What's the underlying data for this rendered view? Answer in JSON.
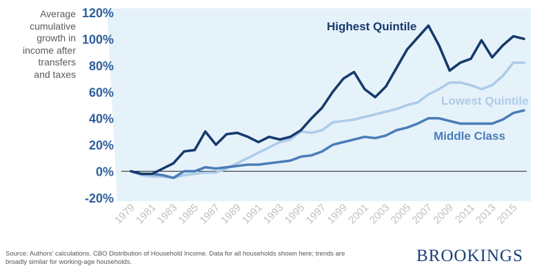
{
  "chart_data": {
    "type": "line",
    "ylabel": "Average cumulative growth in income after transfers and taxes",
    "ylim": [
      -20,
      120
    ],
    "yticks": [
      -20,
      0,
      20,
      40,
      60,
      80,
      100,
      120
    ],
    "ytick_labels": [
      "-20%",
      "0%",
      "20%",
      "40%",
      "60%",
      "80%",
      "100%",
      "120%"
    ],
    "x": [
      1979,
      1980,
      1981,
      1982,
      1983,
      1984,
      1985,
      1986,
      1987,
      1988,
      1989,
      1990,
      1991,
      1992,
      1993,
      1994,
      1995,
      1996,
      1997,
      1998,
      1999,
      2000,
      2001,
      2002,
      2003,
      2004,
      2005,
      2006,
      2007,
      2008,
      2009,
      2010,
      2011,
      2012,
      2013,
      2014,
      2015,
      2016
    ],
    "xticks": [
      "1979",
      "1981",
      "1983",
      "1985",
      "1987",
      "1989",
      "1991",
      "1993",
      "1995",
      "1997",
      "1999",
      "2001",
      "2003",
      "2005",
      "2007",
      "2009",
      "2011",
      "2013",
      "2015"
    ],
    "series": [
      {
        "name": "Highest Quintile",
        "color": "#163a6b",
        "values": [
          0,
          -2,
          -2,
          2,
          6,
          15,
          16,
          30,
          20,
          28,
          29,
          26,
          22,
          26,
          24,
          26,
          31,
          40,
          48,
          60,
          70,
          75,
          62,
          56,
          64,
          78,
          92,
          101,
          110,
          95,
          76,
          82,
          85,
          99,
          86,
          95,
          102,
          100
        ]
      },
      {
        "name": "Lowest Quintile",
        "color": "#aecbe8",
        "values": [
          0,
          -3,
          -4,
          -4,
          -5,
          -3,
          -2,
          -1,
          -1,
          2,
          6,
          10,
          14,
          18,
          22,
          24,
          30,
          29,
          31,
          37,
          38,
          39,
          41,
          43,
          45,
          47,
          50,
          52,
          58,
          62,
          67,
          67,
          65,
          62,
          65,
          72,
          82,
          82
        ]
      },
      {
        "name": "Middle Class",
        "color": "#4a7db8",
        "values": [
          0,
          -2,
          -2,
          -3,
          -5,
          0,
          0,
          3,
          2,
          3,
          4,
          5,
          5,
          6,
          7,
          8,
          11,
          12,
          15,
          20,
          22,
          24,
          26,
          25,
          27,
          31,
          33,
          36,
          40,
          40,
          38,
          36,
          36,
          36,
          36,
          39,
          44,
          46
        ]
      }
    ],
    "annotations": [
      "Highest Quintile",
      "Lowest Quintile",
      "Middle Class"
    ],
    "grid": false,
    "legend": "inline labels"
  },
  "ylabel_text": "Average\ncumulative\ngrowth in\nincome after\ntransfers\nand taxes",
  "source_text": "Source: Authors' calculations. CBO Distribution of Household Income. Data for all households shown here; trends are broadly similar for working-age households.",
  "brand_text": "BROOKINGS",
  "colors": {
    "band": "#e6f2fa",
    "zero_line": "#333333",
    "axis_text": "#2c5e99",
    "tick_text": "#bfbfbf"
  }
}
